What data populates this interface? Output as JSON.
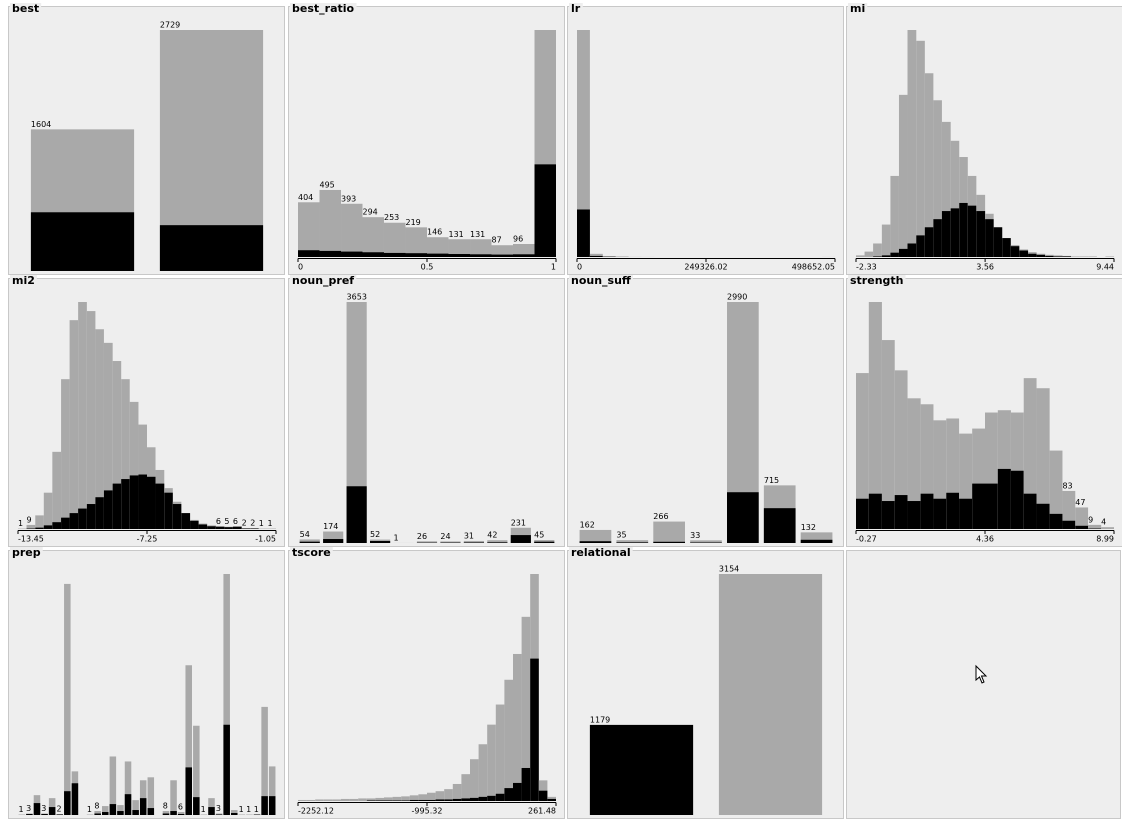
{
  "chart_data": [
    {
      "type": "bar",
      "title": "best",
      "values": [
        1604,
        2729
      ],
      "highlight_values": [
        665,
        519
      ],
      "value_labels": [
        "1604",
        "2729"
      ],
      "color": "#a9a9a9",
      "highlight_color": "#000000"
    },
    {
      "type": "histogram",
      "title": "best_ratio",
      "bins": [
        0,
        0.0833,
        0.1667,
        0.25,
        0.3333,
        0.4167,
        0.5,
        0.5833,
        0.6667,
        0.75,
        0.8333,
        0.9167,
        1
      ],
      "values": [
        404,
        495,
        393,
        294,
        253,
        219,
        146,
        131,
        131,
        87,
        96,
        1676
      ],
      "highlight_values": [
        50,
        45,
        40,
        35,
        30,
        28,
        25,
        22,
        20,
        18,
        20,
        684
      ],
      "value_labels": [
        "404",
        "495",
        "393",
        "294",
        "253",
        "219",
        "146",
        "131",
        "131",
        "87",
        "96",
        null
      ],
      "xlim": [
        0,
        1
      ],
      "xticks": [
        0,
        0.5,
        1
      ],
      "color": "#a9a9a9",
      "highlight_color": "#000000"
    },
    {
      "type": "histogram",
      "title": "lr",
      "bins": [
        0,
        24932.6,
        49865.21,
        74797.81,
        99730.41,
        124663.01,
        149595.62,
        174528.22,
        199460.82,
        224393.42,
        249326.02,
        274258.63,
        299191.23,
        324123.83,
        349056.43,
        373989.04,
        398921.64,
        423854.24,
        448786.84,
        473719.45,
        498652.05
      ],
      "values": [
        4300,
        60,
        15,
        5,
        2,
        1,
        0,
        0,
        0,
        0,
        0,
        0,
        0,
        0,
        0,
        0,
        0,
        0,
        0,
        1
      ],
      "highlight_values": [
        900,
        20,
        5,
        2,
        0,
        0,
        0,
        0,
        0,
        0,
        0,
        0,
        0,
        0,
        0,
        0,
        0,
        0,
        0,
        0
      ],
      "xlim": [
        0,
        498652.05
      ],
      "xticks": [
        0,
        249326.02,
        498652.05
      ],
      "color": "#a9a9a9",
      "highlight_color": "#000000"
    },
    {
      "type": "histogram",
      "title": "mi",
      "bins": [
        -2.33,
        -1.94,
        -1.55,
        -1.15,
        -0.76,
        -0.37,
        0.02,
        0.42,
        0.81,
        1.2,
        1.59,
        1.99,
        2.38,
        2.77,
        3.16,
        3.56,
        3.95,
        4.34,
        4.73,
        5.12,
        5.52,
        5.91,
        6.3,
        6.69,
        7.09,
        7.48,
        7.87,
        8.26,
        8.66,
        9.05,
        9.44
      ],
      "values": [
        3,
        10,
        25,
        60,
        150,
        300,
        420,
        400,
        340,
        290,
        250,
        215,
        185,
        150,
        115,
        80,
        55,
        35,
        22,
        14,
        9,
        6,
        4,
        3,
        2,
        1,
        1,
        1,
        0,
        1
      ],
      "highlight_values": [
        0,
        0,
        1,
        3,
        8,
        15,
        25,
        40,
        55,
        70,
        85,
        90,
        100,
        95,
        85,
        70,
        55,
        35,
        20,
        12,
        6,
        4,
        2,
        1,
        1,
        0,
        0,
        0,
        0,
        0
      ],
      "xlim": [
        -2.33,
        9.44
      ],
      "xticks": [
        -2.33,
        3.56,
        9.44
      ],
      "color": "#a9a9a9",
      "highlight_color": "#000000"
    },
    {
      "type": "histogram",
      "title": "mi2",
      "bins": [
        -13.45,
        -13.04,
        -12.62,
        -12.21,
        -11.8,
        -11.38,
        -10.97,
        -10.56,
        -10.14,
        -9.73,
        -9.32,
        -8.9,
        -8.49,
        -8.08,
        -7.66,
        -7.25,
        -6.84,
        -6.42,
        -6.01,
        -5.6,
        -5.18,
        -4.77,
        -4.36,
        -3.94,
        -3.53,
        -3.12,
        -2.7,
        -2.29,
        -1.88,
        -1.46,
        -1.05
      ],
      "values": [
        1,
        9,
        30,
        80,
        170,
        330,
        460,
        500,
        480,
        440,
        410,
        370,
        330,
        280,
        230,
        180,
        130,
        90,
        60,
        35,
        20,
        12,
        8,
        6,
        5,
        6,
        2,
        2,
        1,
        1
      ],
      "highlight_values": [
        0,
        1,
        3,
        8,
        15,
        25,
        35,
        45,
        55,
        70,
        85,
        100,
        110,
        118,
        120,
        115,
        100,
        80,
        55,
        35,
        18,
        10,
        6,
        5,
        4,
        5,
        1,
        1,
        0,
        0
      ],
      "value_labels": [
        "1",
        "9",
        null,
        null,
        null,
        null,
        null,
        null,
        null,
        null,
        null,
        null,
        null,
        null,
        null,
        null,
        null,
        null,
        null,
        null,
        null,
        null,
        null,
        "6",
        "5",
        "6",
        "2",
        "2",
        "1",
        "1"
      ],
      "xlim": [
        -13.45,
        -1.05
      ],
      "xticks": [
        -13.45,
        -7.25,
        -1.05
      ],
      "color": "#a9a9a9",
      "highlight_color": "#000000"
    },
    {
      "type": "bar",
      "title": "noun_pref",
      "values": [
        54,
        174,
        3653,
        52,
        1,
        26,
        24,
        31,
        42,
        231,
        45
      ],
      "highlight_values": [
        20,
        60,
        860,
        30,
        0,
        5,
        6,
        8,
        10,
        120,
        20
      ],
      "value_labels": [
        "54",
        "174",
        "3653",
        "52",
        "1",
        "26",
        "24",
        "31",
        "42",
        "231",
        "45"
      ],
      "color": "#a9a9a9",
      "highlight_color": "#000000"
    },
    {
      "type": "bar",
      "title": "noun_suff",
      "values": [
        162,
        35,
        266,
        33,
        2990,
        715,
        132
      ],
      "highlight_values": [
        22,
        8,
        15,
        6,
        630,
        432,
        40
      ],
      "value_labels": [
        "162",
        "35",
        "266",
        "33",
        "2990",
        "715",
        "132"
      ],
      "color": "#a9a9a9",
      "highlight_color": "#000000"
    },
    {
      "type": "histogram",
      "title": "strength",
      "bins": [
        -0.27,
        0.19,
        0.66,
        1.12,
        1.58,
        2.05,
        2.51,
        2.97,
        3.43,
        3.9,
        4.36,
        4.82,
        5.29,
        5.75,
        6.21,
        6.68,
        7.14,
        7.6,
        8.06,
        8.53,
        8.99
      ],
      "values": [
        340,
        495,
        412,
        346,
        285,
        272,
        237,
        241,
        208,
        219,
        254,
        259,
        254,
        329,
        307,
        171,
        83,
        47,
        9,
        4
      ],
      "highlight_values": [
        66,
        77,
        61,
        74,
        61,
        77,
        66,
        79,
        66,
        99,
        99,
        131,
        127,
        77,
        55,
        33,
        18,
        7,
        1,
        0
      ],
      "value_labels": [
        null,
        null,
        null,
        null,
        null,
        null,
        null,
        null,
        null,
        null,
        null,
        null,
        null,
        null,
        null,
        null,
        "83",
        "47",
        "9",
        "4"
      ],
      "xlim": [
        -0.27,
        8.99
      ],
      "xticks": [
        -0.27,
        4.36,
        8.99
      ],
      "color": "#a9a9a9",
      "highlight_color": "#000000"
    },
    {
      "type": "bar",
      "title": "prep",
      "values": [
        1,
        3,
        40,
        3,
        34,
        2,
        466,
        88,
        0,
        1,
        8,
        18,
        118,
        20,
        108,
        30,
        70,
        76,
        0,
        8,
        70,
        6,
        302,
        180,
        1,
        34,
        3,
        486,
        10,
        1,
        1,
        1,
        218,
        98
      ],
      "highlight_values": [
        0,
        2,
        24,
        2,
        16,
        1,
        48,
        64,
        0,
        0,
        3,
        6,
        22,
        8,
        42,
        10,
        34,
        14,
        0,
        3,
        8,
        2,
        96,
        36,
        0,
        16,
        1,
        182,
        4,
        0,
        0,
        1,
        38,
        38
      ],
      "value_labels": [
        "1",
        "3",
        null,
        "3",
        null,
        "2",
        null,
        null,
        null,
        "1",
        "8",
        null,
        null,
        null,
        null,
        null,
        null,
        null,
        null,
        "8",
        null,
        "6",
        null,
        null,
        "1",
        null,
        "3",
        null,
        null,
        "1",
        "1",
        "1",
        null,
        null
      ],
      "color": "#a9a9a9",
      "highlight_color": "#000000"
    },
    {
      "type": "histogram",
      "title": "tscore",
      "bins": [
        -2252.12,
        -2168.33,
        -2084.55,
        -2000.76,
        -1916.97,
        -1833.19,
        -1749.4,
        -1665.61,
        -1581.83,
        -1498.04,
        -1414.25,
        -1330.47,
        -1246.68,
        -1162.89,
        -1079.11,
        -995.32,
        -911.53,
        -827.75,
        -743.96,
        -660.17,
        -576.39,
        -492.6,
        -408.81,
        -325.03,
        -241.24,
        -157.45,
        -73.67,
        10.12,
        93.91,
        177.69,
        261.48
      ],
      "values": [
        2,
        2,
        3,
        3,
        3,
        4,
        4,
        5,
        5,
        6,
        7,
        8,
        9,
        11,
        13,
        16,
        19,
        23,
        33,
        52,
        81,
        110,
        148,
        187,
        235,
        285,
        357,
        440,
        40,
        8
      ],
      "highlight_values": [
        0,
        0,
        0,
        0,
        0,
        0,
        0,
        0,
        1,
        1,
        1,
        1,
        1,
        2,
        2,
        2,
        3,
        3,
        4,
        5,
        6,
        8,
        10,
        14,
        25,
        35,
        64,
        276,
        20,
        4
      ],
      "xlim": [
        -2252.12,
        261.48
      ],
      "xticks": [
        -2252.12,
        -995.32,
        261.48
      ],
      "color": "#a9a9a9",
      "highlight_color": "#000000"
    },
    {
      "type": "bar",
      "title": "relational",
      "values": [
        1179,
        3154
      ],
      "highlight_values": [
        1179,
        0
      ],
      "value_labels": [
        "1179",
        "3154"
      ],
      "color": "#a9a9a9",
      "highlight_color": "#000000"
    }
  ]
}
